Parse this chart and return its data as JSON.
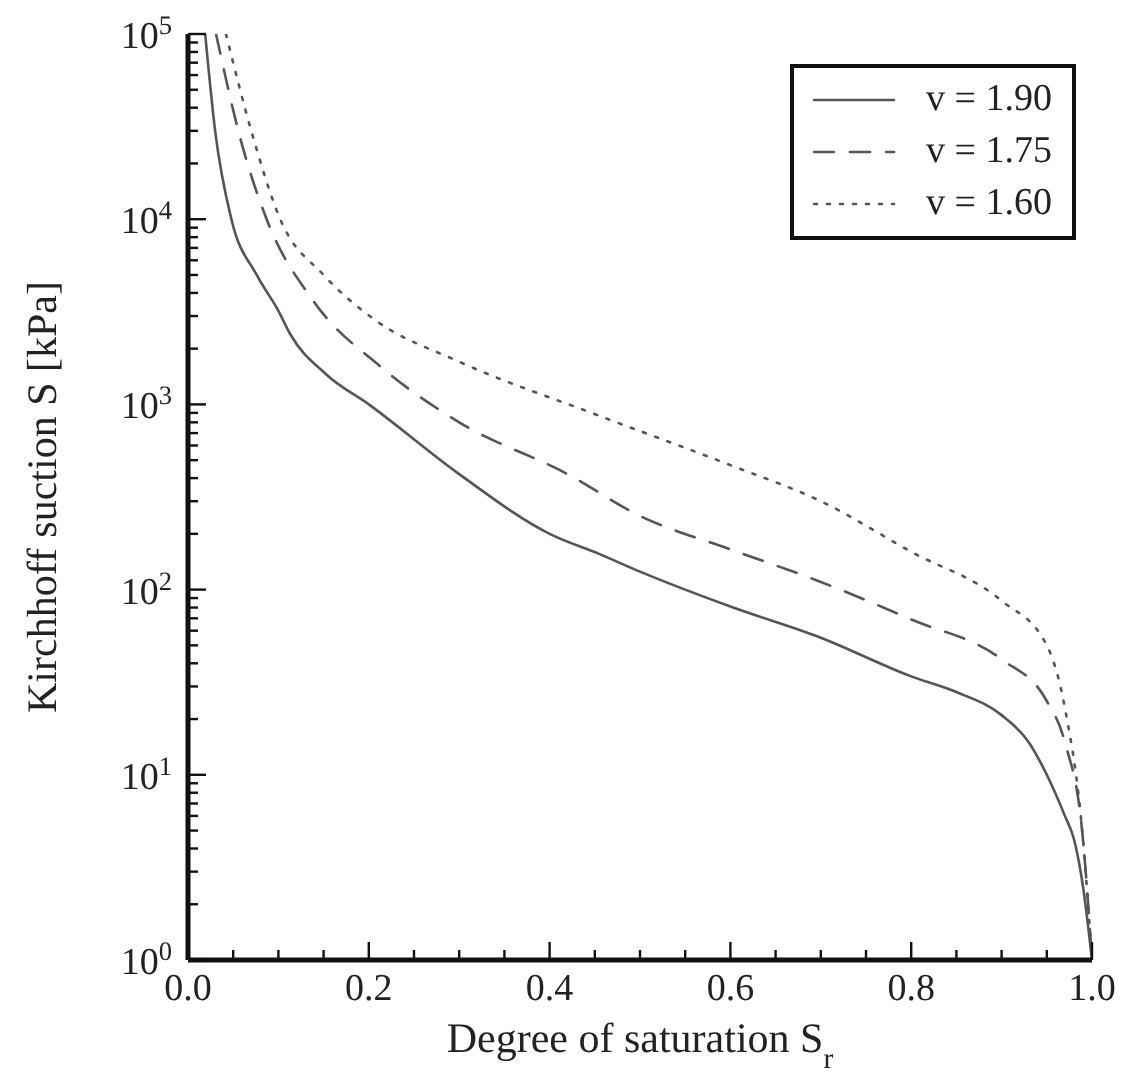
{
  "chart_data": {
    "type": "line",
    "xlabel": "Degree of saturation  S$_{r}$",
    "ylabel": "Kirchhoff suction  S [kPa]",
    "log": "y",
    "grid": false,
    "legend": "top right",
    "marker": "none",
    "xlim": [
      0,
      1
    ],
    "xticks": [
      {
        "value": 0.05,
        "label": null
      },
      {
        "value": 0.2,
        "label": "0.2"
      },
      {
        "value": 0.1,
        "label": null
      },
      {
        "value": 0.15,
        "label": null
      },
      {
        "value": 0.25,
        "label": null
      },
      {
        "value": 0.3,
        "label": null
      },
      {
        "value": 0.35,
        "label": null
      },
      {
        "value": 0.4,
        "label": "0.4"
      },
      {
        "value": 0.45,
        "label": null
      },
      {
        "value": 0.5,
        "label": null
      },
      {
        "value": 0.55,
        "label": null
      },
      {
        "value": 0.6,
        "label": "0.6"
      },
      {
        "value": 0.65,
        "label": null
      },
      {
        "value": 0.7,
        "label": null
      },
      {
        "value": 0.75,
        "label": null
      },
      {
        "value": 0.8,
        "label": "0.8"
      },
      {
        "value": 0.85,
        "label": null
      },
      {
        "value": 0.9,
        "label": null
      },
      {
        "value": 0.95,
        "label": null
      },
      {
        "value": 0,
        "label": "0.0"
      },
      {
        "value": 1,
        "label": "1.0"
      }
    ],
    "ylim": [
      1,
      100000
    ],
    "yticks": [
      {
        "value": 1,
        "label": "10$^{0}$"
      },
      {
        "value": 10,
        "label": "10$^{1}$"
      },
      {
        "value": 100,
        "label": "10$^{2}$"
      },
      {
        "value": 1000,
        "label": "10$^{3}$"
      },
      {
        "value": 10000,
        "label": "10$^{4}$"
      },
      {
        "value": 100000,
        "label": "10$^{5}$"
      },
      {
        "value": 2,
        "label": null
      },
      {
        "value": 3,
        "label": null
      },
      {
        "value": 4,
        "label": null
      },
      {
        "value": 5,
        "label": null
      },
      {
        "value": 6,
        "label": null
      },
      {
        "value": 7,
        "label": null
      },
      {
        "value": 8,
        "label": null
      },
      {
        "value": 9,
        "label": null
      },
      {
        "value": 20,
        "label": null
      },
      {
        "value": 30,
        "label": null
      },
      {
        "value": 40,
        "label": null
      },
      {
        "value": 50,
        "label": null
      },
      {
        "value": 60,
        "label": null
      },
      {
        "value": 70,
        "label": null
      },
      {
        "value": 80,
        "label": null
      },
      {
        "value": 90,
        "label": null
      },
      {
        "value": 200,
        "label": null
      },
      {
        "value": 300,
        "label": null
      },
      {
        "value": 400,
        "label": null
      },
      {
        "value": 500,
        "label": null
      },
      {
        "value": 600,
        "label": null
      },
      {
        "value": 700,
        "label": null
      },
      {
        "value": 800,
        "label": null
      },
      {
        "value": 900,
        "label": null
      },
      {
        "value": 2000,
        "label": null
      },
      {
        "value": 3000,
        "label": null
      },
      {
        "value": 4000,
        "label": null
      },
      {
        "value": 5000,
        "label": null
      },
      {
        "value": 6000,
        "label": null
      },
      {
        "value": 7000,
        "label": null
      },
      {
        "value": 8000,
        "label": null
      },
      {
        "value": 9000,
        "label": null
      },
      {
        "value": 20000,
        "label": null
      },
      {
        "value": 30000,
        "label": null
      },
      {
        "value": 40000,
        "label": null
      },
      {
        "value": 50000,
        "label": null
      },
      {
        "value": 60000,
        "label": null
      },
      {
        "value": 70000,
        "label": null
      },
      {
        "value": 80000,
        "label": null
      },
      {
        "value": 90000,
        "label": null
      }
    ],
    "series": [
      {
        "name": "v = 1.90",
        "color": "#555555",
        "line_style": "solid",
        "x": [
          0.019,
          0.03,
          0.048,
          0.076,
          0.1,
          0.113,
          0.153,
          0.2,
          0.3,
          0.4,
          0.456,
          0.5,
          0.6,
          0.7,
          0.8,
          0.85,
          0.9,
          0.93,
          0.95,
          0.97,
          0.98,
          0.99,
          1.0
        ],
        "values": [
          100000,
          30000,
          10000,
          5000,
          3200,
          2400,
          1450,
          1000,
          420,
          200,
          155,
          125,
          81,
          55,
          34,
          28,
          21,
          15,
          10,
          6,
          4.5,
          2.5,
          1
        ]
      },
      {
        "name": "v = 1.75",
        "color": "#555555",
        "line_style": "dashed",
        "x": [
          0.031,
          0.06,
          0.087,
          0.139,
          0.213,
          0.3,
          0.42,
          0.5,
          0.6,
          0.7,
          0.8,
          0.9,
          0.95,
          0.97,
          0.99,
          1.0
        ],
        "values": [
          100000,
          25000,
          10000,
          3600,
          1600,
          800,
          420,
          250,
          165,
          110,
          69,
          42,
          25,
          15,
          4.5,
          1
        ]
      },
      {
        "name": "v = 1.60",
        "color": "#555555",
        "line_style": "dotted",
        "x": [
          0.042,
          0.07,
          0.102,
          0.15,
          0.205,
          0.3,
          0.449,
          0.6,
          0.7,
          0.8,
          0.9,
          0.95,
          0.97,
          0.99,
          1.0
        ],
        "values": [
          100000,
          30000,
          10000,
          5000,
          2900,
          1700,
          890,
          470,
          300,
          160,
          87,
          50,
          23,
          4.5,
          1
        ]
      }
    ]
  }
}
